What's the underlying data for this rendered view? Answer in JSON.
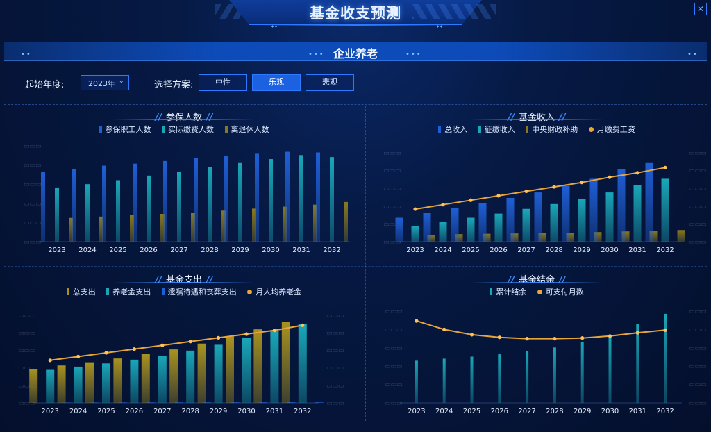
{
  "header": {
    "title": "基金收支预测",
    "close_icon": "close-icon"
  },
  "subtitle": "企业养老",
  "controls": {
    "start_year_label": "起始年度:",
    "start_year_value": "2023年",
    "scheme_label": "选择方案:",
    "schemes": [
      "中性",
      "乐观",
      "悲观"
    ],
    "active_scheme": "乐观"
  },
  "colors": {
    "blue": "#1f5fd6",
    "teal": "#1aa7b8",
    "olive": "#8a7a1e",
    "orange": "#e9a53a",
    "gold": "#a8921f"
  },
  "panels": {
    "insured": {
      "title": "参保人数",
      "legend": [
        "参保职工人数",
        "实际缴费人数",
        "离退休人数"
      ]
    },
    "income": {
      "title": "基金收入",
      "legend": [
        "总收入",
        "征缴收入",
        "中央财政补助",
        "月缴费工资"
      ]
    },
    "expense": {
      "title": "基金支出",
      "legend": [
        "总支出",
        "养老金支出",
        "遗嘱待遇和丧葬支出",
        "月人均养老金"
      ]
    },
    "balance": {
      "title": "基金结余",
      "legend": [
        "累计结余",
        "可支付月数"
      ]
    }
  },
  "chart_data": [
    {
      "type": "bar",
      "title": "参保人数",
      "categories": [
        "2023",
        "2024",
        "2025",
        "2026",
        "2027",
        "2028",
        "2029",
        "2030",
        "2031",
        "2032"
      ],
      "series": [
        {
          "name": "参保职工人数",
          "values": [
            1050,
            1100,
            1150,
            1180,
            1220,
            1270,
            1300,
            1330,
            1360,
            1350
          ]
        },
        {
          "name": "实际缴费人数",
          "values": [
            810,
            870,
            930,
            1000,
            1060,
            1130,
            1200,
            1250,
            1310,
            1280
          ]
        },
        {
          "name": "离退休人数",
          "values": [
            360,
            380,
            400,
            420,
            440,
            470,
            500,
            530,
            560,
            600
          ]
        }
      ]
    },
    {
      "type": "bar",
      "title": "基金收入",
      "categories": [
        "2023",
        "2024",
        "2025",
        "2026",
        "2027",
        "2028",
        "2029",
        "2030",
        "2031",
        "2032"
      ],
      "series": [
        {
          "name": "总收入",
          "values": [
            350,
            420,
            490,
            560,
            640,
            720,
            820,
            920,
            1060,
            1160
          ]
        },
        {
          "name": "征缴收入",
          "values": [
            230,
            290,
            350,
            410,
            480,
            550,
            630,
            720,
            830,
            920
          ]
        },
        {
          "name": "中央财政补助",
          "values": [
            100,
            110,
            115,
            120,
            125,
            130,
            140,
            150,
            160,
            170
          ]
        },
        {
          "name": "月缴费工资",
          "values": [
            5200,
            5500,
            5800,
            6100,
            6400,
            6700,
            7000,
            7350,
            7650,
            8000
          ]
        }
      ]
    },
    {
      "type": "bar",
      "title": "基金支出",
      "categories": [
        "2023",
        "2024",
        "2025",
        "2026",
        "2027",
        "2028",
        "2029",
        "2030",
        "2031",
        "2032"
      ],
      "series": [
        {
          "name": "总支出",
          "values": [
            1160,
            1280,
            1390,
            1520,
            1670,
            1830,
            2030,
            2270,
            2520,
            2770
          ]
        },
        {
          "name": "养老金支出",
          "values": [
            1130,
            1240,
            1350,
            1480,
            1620,
            1790,
            1990,
            2220,
            2460,
            2700
          ]
        },
        {
          "name": "遗嘱待遇和丧葬支出",
          "values": [
            15,
            16,
            17,
            18,
            19,
            20,
            21,
            22,
            23,
            24
          ]
        },
        {
          "name": "月人均养老金",
          "values": [
            3200,
            3350,
            3500,
            3650,
            3800,
            3950,
            4100,
            4250,
            4400,
            4600
          ]
        }
      ]
    },
    {
      "type": "bar",
      "title": "基金结余",
      "categories": [
        "2023",
        "2024",
        "2025",
        "2026",
        "2027",
        "2028",
        "2029",
        "2030",
        "2031",
        "2032"
      ],
      "series": [
        {
          "name": "累计结余",
          "values": [
            1240,
            1300,
            1360,
            1430,
            1520,
            1630,
            1780,
            2000,
            2330,
            2620
          ]
        },
        {
          "name": "可支付月数",
          "values": [
            14.5,
            13.2,
            12.4,
            12.0,
            11.8,
            11.8,
            11.9,
            12.2,
            12.7,
            13.1
          ]
        }
      ]
    }
  ]
}
